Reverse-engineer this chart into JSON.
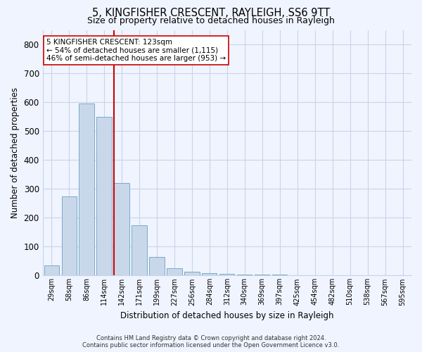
{
  "title1": "5, KINGFISHER CRESCENT, RAYLEIGH, SS6 9TT",
  "title2": "Size of property relative to detached houses in Rayleigh",
  "xlabel": "Distribution of detached houses by size in Rayleigh",
  "ylabel": "Number of detached properties",
  "footer1": "Contains HM Land Registry data © Crown copyright and database right 2024.",
  "footer2": "Contains public sector information licensed under the Open Government Licence v3.0.",
  "bar_labels": [
    "29sqm",
    "58sqm",
    "86sqm",
    "114sqm",
    "142sqm",
    "171sqm",
    "199sqm",
    "227sqm",
    "256sqm",
    "284sqm",
    "312sqm",
    "340sqm",
    "369sqm",
    "397sqm",
    "425sqm",
    "454sqm",
    "482sqm",
    "510sqm",
    "538sqm",
    "567sqm",
    "595sqm"
  ],
  "bar_values": [
    35,
    275,
    595,
    550,
    320,
    175,
    65,
    25,
    12,
    8,
    5,
    4,
    3,
    3,
    2,
    2,
    2,
    1,
    1,
    1,
    1
  ],
  "bar_color": "#c8d8ea",
  "bar_edgecolor": "#7aaac8",
  "vline_color": "#cc0000",
  "annotation_text": "5 KINGFISHER CRESCENT: 123sqm\n← 54% of detached houses are smaller (1,115)\n46% of semi-detached houses are larger (953) →",
  "annotation_box_color": "white",
  "annotation_box_edgecolor": "#cc0000",
  "ylim": [
    0,
    850
  ],
  "yticks": [
    0,
    100,
    200,
    300,
    400,
    500,
    600,
    700,
    800
  ],
  "bg_color": "#f0f4ff",
  "grid_color": "#c8d4e8"
}
